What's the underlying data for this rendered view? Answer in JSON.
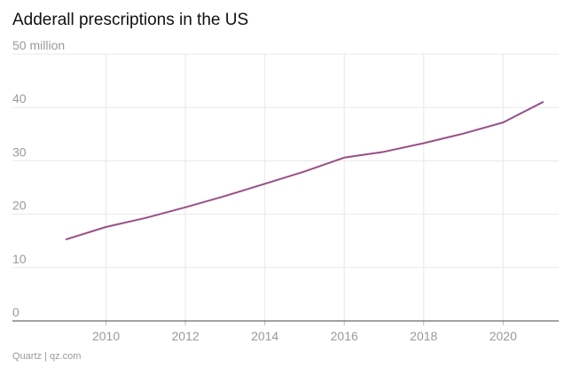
{
  "title": "Adderall prescriptions in the US",
  "source": "Quartz | qz.com",
  "colors": {
    "line": "#9a4f84",
    "grid": "#e8e8e8",
    "axis": "#444444",
    "tick_text": "#9a9a9a"
  },
  "chart_data": {
    "type": "line",
    "title": "Adderall prescriptions in the US",
    "xlabel": "",
    "ylabel": "",
    "xlim": [
      2008.0,
      2021.4
    ],
    "ylim": [
      0,
      50
    ],
    "grid": true,
    "y_ticks": [
      {
        "value": 0,
        "label": "0"
      },
      {
        "value": 10,
        "label": "10"
      },
      {
        "value": 20,
        "label": "20"
      },
      {
        "value": 30,
        "label": "30"
      },
      {
        "value": 40,
        "label": "40"
      },
      {
        "value": 50,
        "label": "50 million"
      }
    ],
    "x_ticks": [
      {
        "value": 2010,
        "label": "2010"
      },
      {
        "value": 2012,
        "label": "2012"
      },
      {
        "value": 2014,
        "label": "2014"
      },
      {
        "value": 2016,
        "label": "2016"
      },
      {
        "value": 2018,
        "label": "2018"
      },
      {
        "value": 2020,
        "label": "2020"
      }
    ],
    "series": [
      {
        "x": [
          2009,
          2010,
          2011,
          2012,
          2013,
          2014,
          2015,
          2016,
          2017,
          2018,
          2019,
          2020,
          2021
        ],
        "values": [
          15.3,
          17.6,
          19.3,
          21.3,
          23.4,
          25.7,
          28.0,
          30.6,
          31.7,
          33.3,
          35.1,
          37.2,
          41.0
        ]
      }
    ]
  }
}
